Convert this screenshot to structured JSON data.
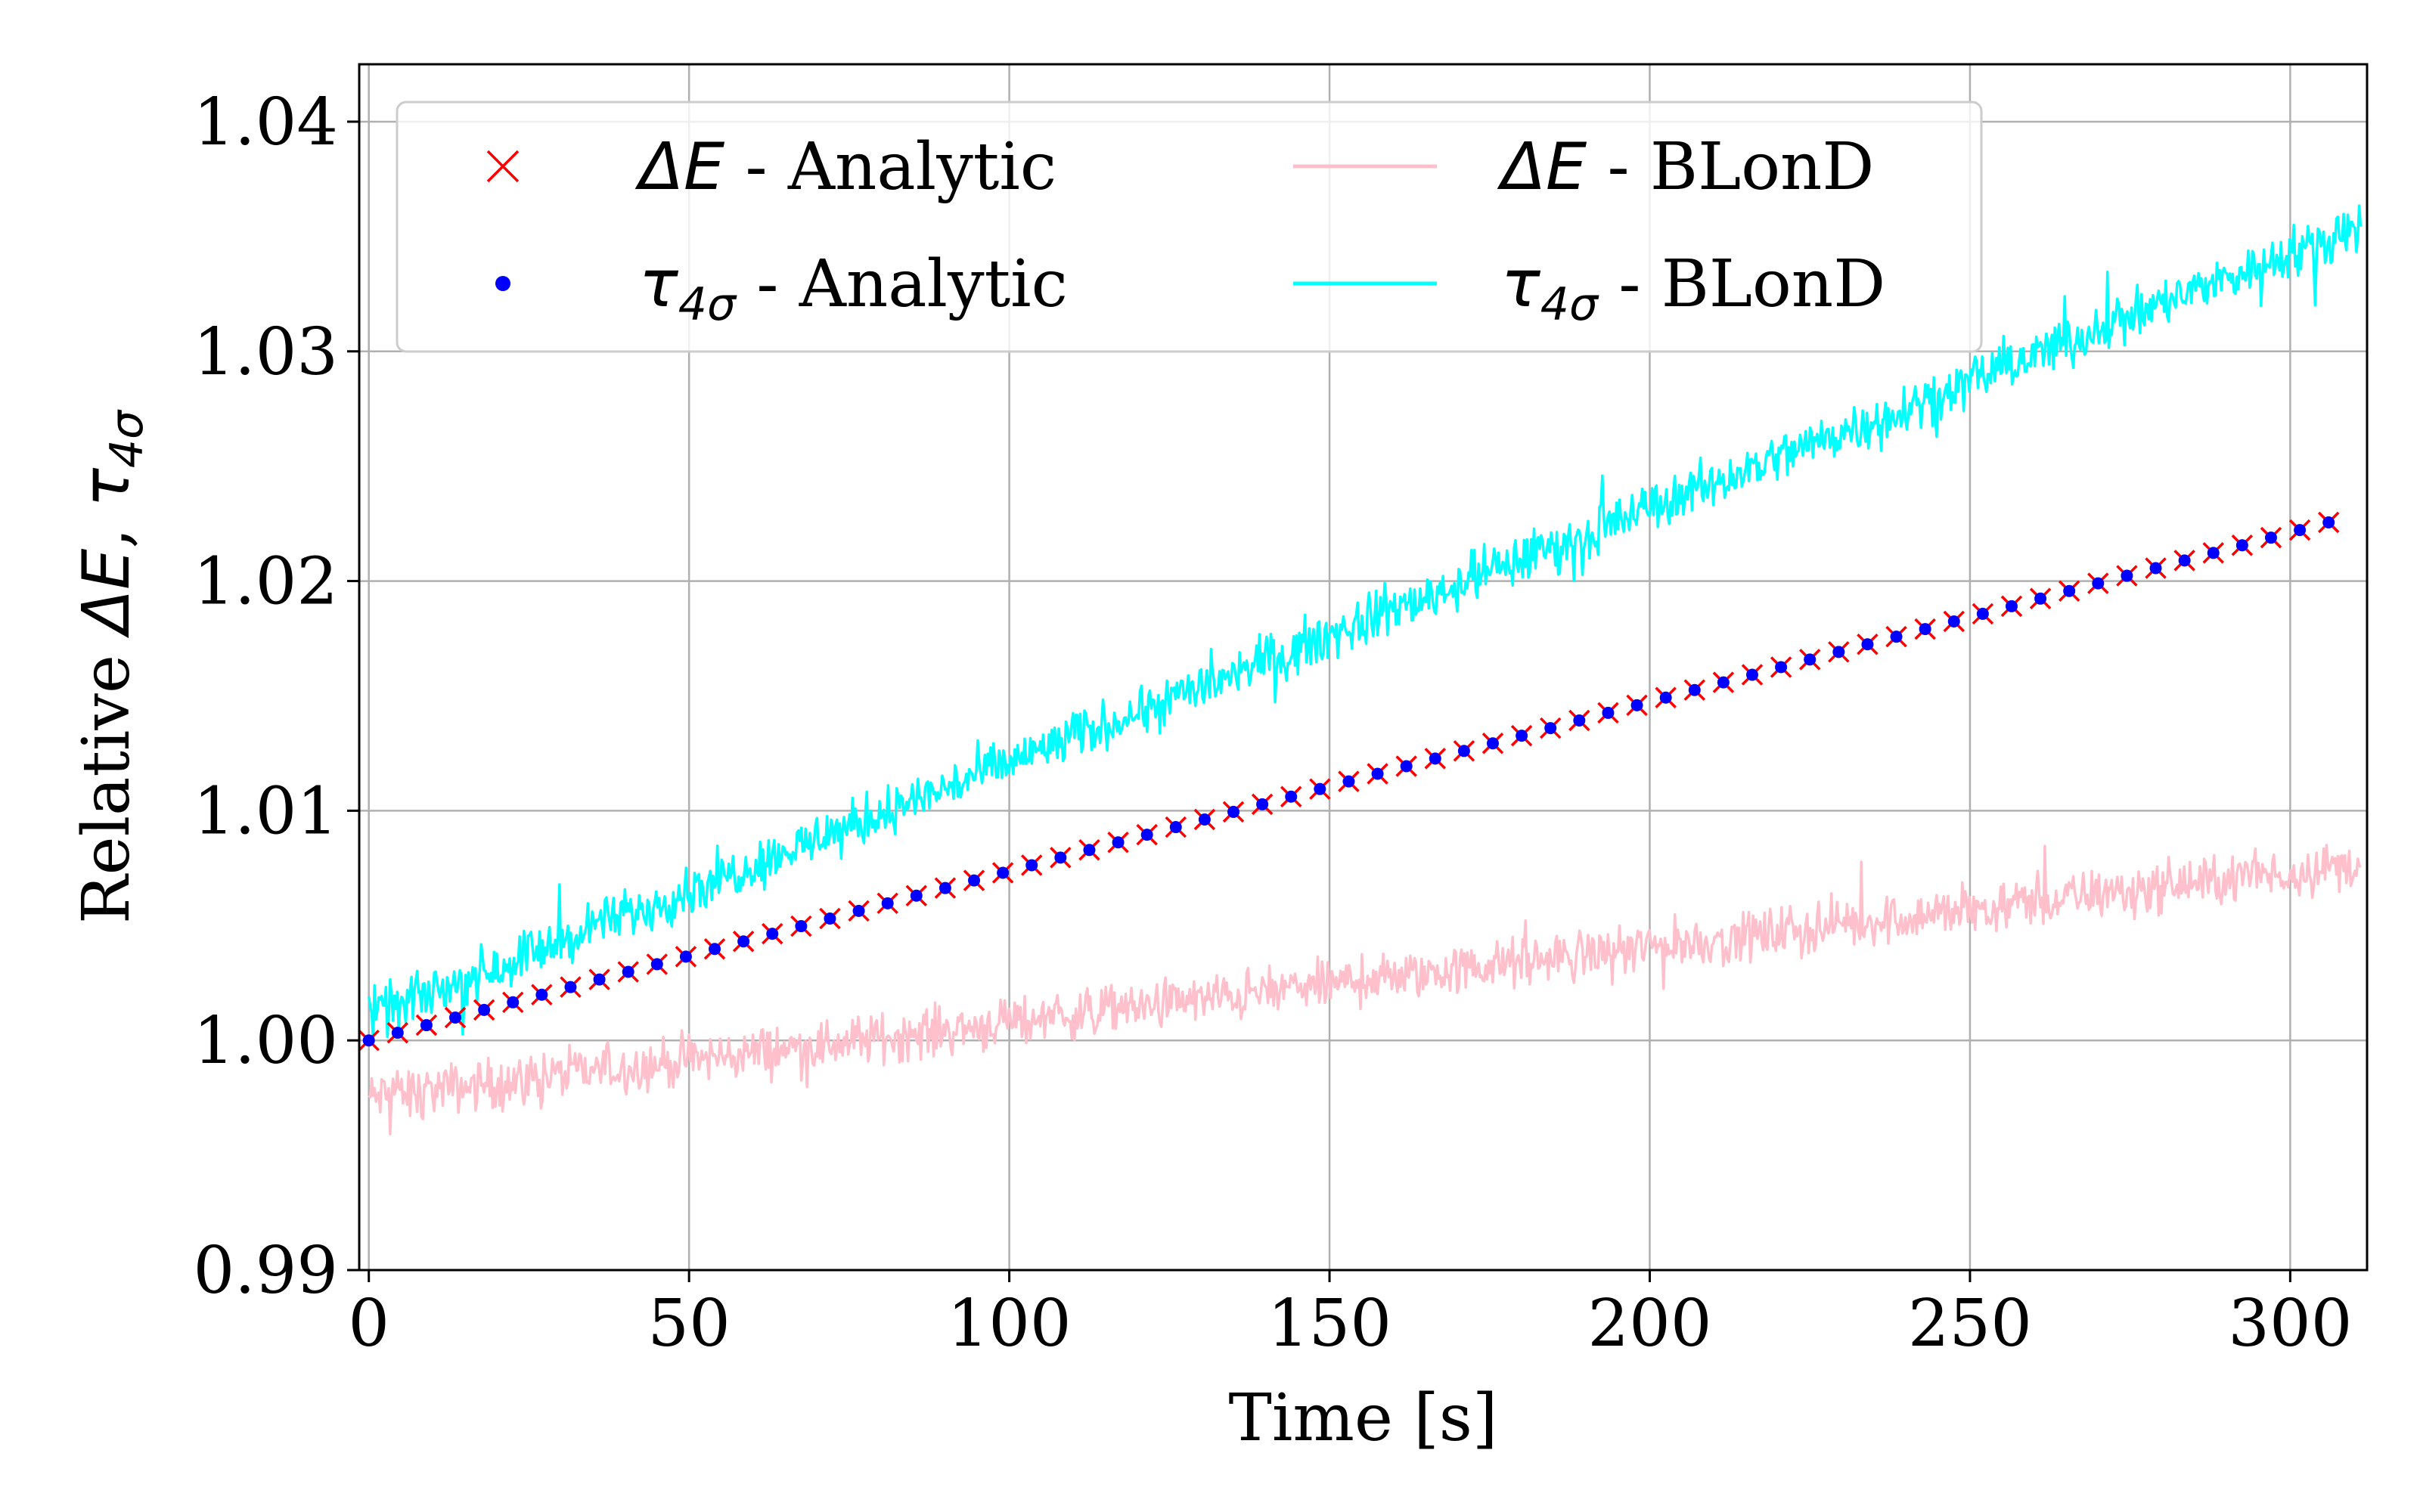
{
  "chart_data": {
    "type": "line",
    "xlabel": "Time [s]",
    "ylabel": {
      "prefix": "Relative ",
      "delta_symbol": "Δ",
      "energy_symbol": "E",
      "separator": ",  ",
      "tau_symbol": "τ",
      "tau_subscript": "4σ"
    },
    "xlim": [
      -1.5,
      312
    ],
    "ylim": [
      0.99,
      1.0425
    ],
    "xticks": [
      0,
      50,
      100,
      150,
      200,
      250,
      300
    ],
    "xtick_labels": [
      "0",
      "50",
      "100",
      "150",
      "200",
      "250",
      "300"
    ],
    "yticks": [
      0.99,
      1.0,
      1.01,
      1.02,
      1.03,
      1.04
    ],
    "ytick_labels": [
      "0.99",
      "1.00",
      "1.01",
      "1.02",
      "1.03",
      "1.04"
    ],
    "grid": true,
    "legend_position": "top-left, 2 columns",
    "series": [
      {
        "name": "ΔE - Analytic",
        "legend": {
          "sym": "Δ",
          "var": "E",
          "sub": "",
          "suffix": " - Analytic"
        },
        "marker": "x",
        "color": "#ff0000",
        "x_start": 0,
        "x_end": 308,
        "x_step": 4.5,
        "y_start": 1.0,
        "y_end": 1.0227
      },
      {
        "name": "τ4σ - Analytic",
        "legend": {
          "sym": "",
          "var": "τ",
          "sub": "4σ",
          "suffix": " - Analytic"
        },
        "marker": "dot",
        "color": "#0000ff",
        "x_start": 0,
        "x_end": 308,
        "x_step": 4.5,
        "y_start": 1.0,
        "y_end": 1.0227
      },
      {
        "name": "ΔE - BLonD",
        "legend": {
          "sym": "Δ",
          "var": "E",
          "sub": "",
          "suffix": " - BLonD"
        },
        "marker": "line",
        "color": "#ffc0cb",
        "x_start": 0,
        "x_end": 311,
        "y_start": 0.9975,
        "y_end": 1.0077,
        "noise": 0.0016
      },
      {
        "name": "τ4σ - BLonD",
        "legend": {
          "sym": "",
          "var": "τ",
          "sub": "4σ",
          "suffix": " - BLonD"
        },
        "marker": "line",
        "color": "#00ffff",
        "x_start": 0,
        "x_end": 311,
        "y_start": 1.001,
        "y_end": 1.0355,
        "noise": 0.0016
      }
    ]
  }
}
